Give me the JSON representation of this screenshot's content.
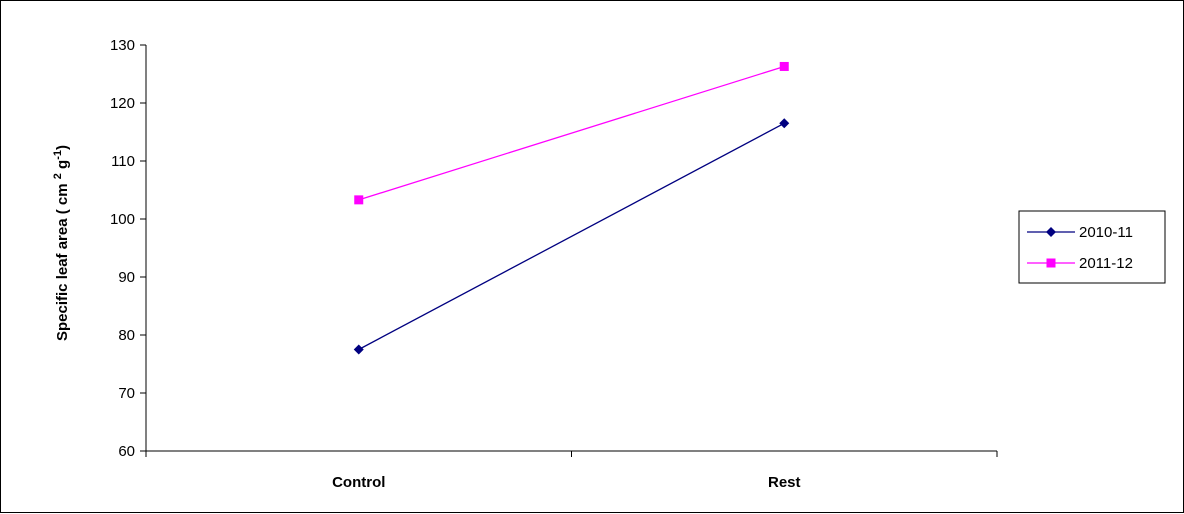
{
  "chart_data": {
    "type": "line",
    "categories": [
      "Control",
      "Rest"
    ],
    "series": [
      {
        "name": "2010-11",
        "values": [
          77.5,
          116.5
        ],
        "color": "#000080",
        "marker": "diamond"
      },
      {
        "name": "2011-12",
        "values": [
          103.3,
          126.3
        ],
        "color": "#ff00ff",
        "marker": "square"
      }
    ],
    "ylabel": {
      "main": "Specific leaf area ( cm ",
      "sup1": "2",
      "mid": " g",
      "sup2": "-1",
      "end": ")"
    },
    "ylim": [
      60,
      130
    ],
    "yticks": [
      60,
      70,
      80,
      90,
      100,
      110,
      120,
      130
    ],
    "grid": false,
    "legend_position": "right"
  }
}
